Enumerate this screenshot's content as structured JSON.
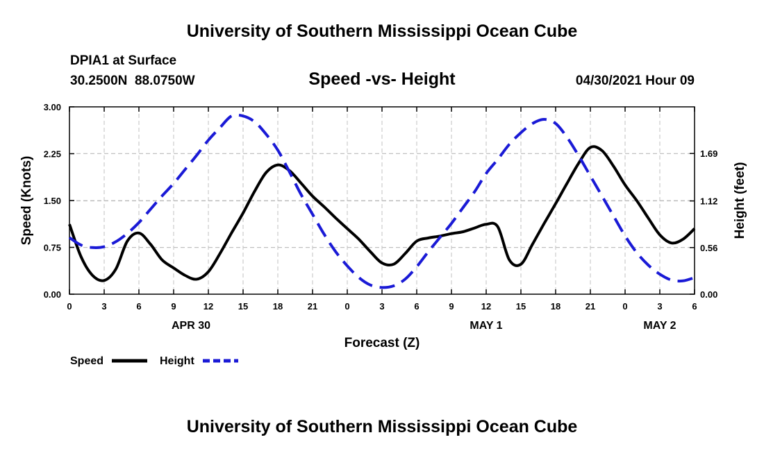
{
  "header": {
    "title_top": "University of Southern Mississippi Ocean Cube",
    "title_bottom": "University of Southern Mississippi Ocean Cube",
    "station": "DPIA1 at Surface",
    "coords": "30.2500N  88.0750W",
    "datetime": "04/30/2021 Hour 09"
  },
  "colors": {
    "speed": "#000000",
    "height": "#1a1ad6",
    "grid": "#c0c0c0"
  },
  "chart_data": {
    "type": "line",
    "title": "Speed -vs- Height",
    "xlabel": "Forecast (Z)",
    "ylabel": "Speed (Knots)",
    "y2label": "Height (feet)",
    "xlim": [
      0,
      54
    ],
    "ylim": [
      0,
      3
    ],
    "y2lim": [
      0,
      2.25
    ],
    "grid": true,
    "x_ticks": [
      0,
      3,
      6,
      9,
      12,
      15,
      18,
      21,
      24,
      27,
      30,
      33,
      36,
      39,
      42,
      45,
      48,
      51,
      54
    ],
    "x_tick_labels": [
      "0",
      "3",
      "6",
      "9",
      "12",
      "15",
      "18",
      "21",
      "0",
      "3",
      "6",
      "9",
      "12",
      "15",
      "18",
      "21",
      "0",
      "3",
      "6"
    ],
    "y_ticks": [
      0,
      0.75,
      1.5,
      2.25,
      3
    ],
    "y_tick_labels": [
      "0.00",
      "0.75",
      "1.50",
      "2.25",
      "3.00"
    ],
    "y2_ticks": [
      0,
      0.56,
      1.12,
      1.69
    ],
    "y2_tick_labels": [
      "0.00",
      "0.56",
      "1.12",
      "1.69"
    ],
    "date_labels": [
      {
        "x": 10.5,
        "label": "APR 30"
      },
      {
        "x": 36,
        "label": "MAY 1"
      },
      {
        "x": 51,
        "label": "MAY 2"
      }
    ],
    "legend_position": "bottom-left",
    "series": [
      {
        "name": "Speed",
        "axis": "left",
        "style": "solid",
        "x": [
          0,
          1,
          2,
          3,
          4,
          5,
          6,
          7,
          8,
          9,
          10,
          11,
          12,
          13,
          14,
          15,
          16,
          17,
          18,
          19,
          20,
          21,
          22,
          23,
          24,
          25,
          26,
          27,
          28,
          29,
          30,
          31,
          32,
          33,
          34,
          35,
          36,
          37,
          38,
          39,
          40,
          41,
          42,
          43,
          44,
          45,
          46,
          47,
          48,
          49,
          50,
          51,
          52,
          53,
          54
        ],
        "values": [
          1.12,
          0.6,
          0.3,
          0.22,
          0.4,
          0.85,
          0.98,
          0.8,
          0.55,
          0.42,
          0.3,
          0.24,
          0.36,
          0.65,
          0.98,
          1.3,
          1.65,
          1.95,
          2.07,
          1.98,
          1.78,
          1.57,
          1.4,
          1.22,
          1.05,
          0.88,
          0.68,
          0.5,
          0.48,
          0.65,
          0.85,
          0.9,
          0.93,
          0.97,
          1.0,
          1.06,
          1.12,
          1.08,
          0.55,
          0.48,
          0.8,
          1.13,
          1.45,
          1.78,
          2.1,
          2.35,
          2.3,
          2.05,
          1.75,
          1.5,
          1.22,
          0.95,
          0.82,
          0.88,
          1.05
        ]
      },
      {
        "name": "Height",
        "axis": "right",
        "style": "dashed",
        "x": [
          0,
          1,
          2,
          3,
          4,
          5,
          6,
          7,
          8,
          9,
          10,
          11,
          12,
          13,
          14,
          15,
          16,
          17,
          18,
          19,
          20,
          21,
          22,
          23,
          24,
          25,
          26,
          27,
          28,
          29,
          30,
          31,
          32,
          33,
          34,
          35,
          36,
          37,
          38,
          39,
          40,
          41,
          42,
          43,
          44,
          45,
          46,
          47,
          48,
          49,
          50,
          51,
          52,
          53,
          54
        ],
        "values": [
          0.68,
          0.59,
          0.56,
          0.57,
          0.63,
          0.73,
          0.86,
          1.02,
          1.18,
          1.33,
          1.5,
          1.67,
          1.85,
          2.0,
          2.14,
          2.14,
          2.07,
          1.92,
          1.73,
          1.47,
          1.2,
          0.96,
          0.72,
          0.51,
          0.34,
          0.2,
          0.11,
          0.08,
          0.1,
          0.18,
          0.33,
          0.51,
          0.68,
          0.85,
          1.04,
          1.23,
          1.45,
          1.62,
          1.8,
          1.94,
          2.05,
          2.1,
          2.05,
          1.88,
          1.66,
          1.42,
          1.18,
          0.94,
          0.7,
          0.5,
          0.35,
          0.24,
          0.17,
          0.16,
          0.2
        ]
      }
    ]
  }
}
